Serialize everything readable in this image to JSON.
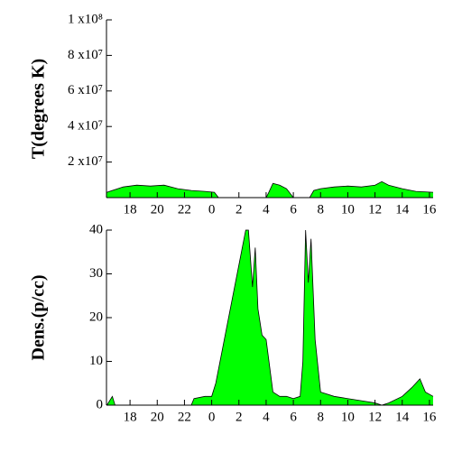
{
  "chart_data": [
    {
      "type": "area",
      "y_label": "T(degrees K)",
      "color": "#00ff00",
      "x": [
        16.3,
        17.5,
        18.5,
        19.5,
        20.5,
        21.5,
        22.5,
        23.5,
        24.2,
        24.5,
        28,
        28.2,
        28.5,
        29,
        29.5,
        30,
        31.2,
        31.5,
        32,
        33,
        34,
        35,
        36,
        36.5,
        37,
        38,
        39,
        40.27
      ],
      "values": [
        3000000,
        6000000,
        7000000,
        6500000,
        7000000,
        5000000,
        4000000,
        3500000,
        3000000,
        0,
        0,
        3000000,
        8000000,
        7000000,
        5000000,
        0,
        0,
        4000000,
        5000000,
        6000000,
        6500000,
        6000000,
        7000000,
        9000000,
        7000000,
        5000000,
        3500000,
        3000000
      ],
      "xlim": [
        16.27,
        40.27
      ],
      "xticks": [
        18,
        20,
        22,
        {
          "value": 24,
          "label": "0"
        },
        {
          "value": 26,
          "label": "2"
        },
        {
          "value": 28,
          "label": "4"
        },
        {
          "value": 30,
          "label": "6"
        },
        {
          "value": 32,
          "label": "8"
        },
        {
          "value": 34,
          "label": "10"
        },
        {
          "value": 36,
          "label": "12"
        },
        {
          "value": 38,
          "label": "14"
        },
        {
          "value": 40,
          "label": "16"
        }
      ],
      "ylim": [
        0,
        100000000
      ],
      "yticks": [
        {
          "value": 20000000,
          "label": "2 x10⁷"
        },
        {
          "value": 40000000,
          "label": "4 x10⁷"
        },
        {
          "value": 60000000,
          "label": "6 x10⁷"
        },
        {
          "value": 80000000,
          "label": "8 x10⁷"
        },
        {
          "value": 100000000,
          "label": "1 x10⁸"
        }
      ]
    },
    {
      "type": "area",
      "y_label": "Dens.(p/cc)",
      "color": "#00ff00",
      "x": [
        16.3,
        16.5,
        16.7,
        16.9,
        22.5,
        22.7,
        23.5,
        24,
        24.3,
        26.5,
        26.7,
        27,
        27.2,
        27.4,
        27.7,
        28,
        28.5,
        29,
        29.5,
        30,
        30.5,
        30.7,
        30.9,
        31.1,
        31.3,
        31.6,
        32,
        33,
        34,
        35,
        36,
        36.5,
        37,
        38,
        38.7,
        39.3,
        39.7,
        40.27
      ],
      "values": [
        0,
        1,
        2,
        0,
        0,
        1.5,
        2,
        2,
        5,
        40,
        40,
        27,
        36,
        22,
        16,
        15,
        3,
        2,
        2,
        1.5,
        2,
        10,
        40,
        28,
        38,
        15,
        3,
        2,
        1.5,
        1,
        0.5,
        0,
        0.5,
        2,
        4,
        6,
        3,
        2
      ],
      "xlim": [
        16.27,
        40.27
      ],
      "xticks": [
        18,
        20,
        22,
        {
          "value": 24,
          "label": "0"
        },
        {
          "value": 26,
          "label": "2"
        },
        {
          "value": 28,
          "label": "4"
        },
        {
          "value": 30,
          "label": "6"
        },
        {
          "value": 32,
          "label": "8"
        },
        {
          "value": 34,
          "label": "10"
        },
        {
          "value": 36,
          "label": "12"
        },
        {
          "value": 38,
          "label": "14"
        },
        {
          "value": 40,
          "label": "16"
        }
      ],
      "ylim": [
        0,
        40
      ],
      "yticks": [
        0,
        10,
        20,
        30,
        40
      ]
    }
  ]
}
